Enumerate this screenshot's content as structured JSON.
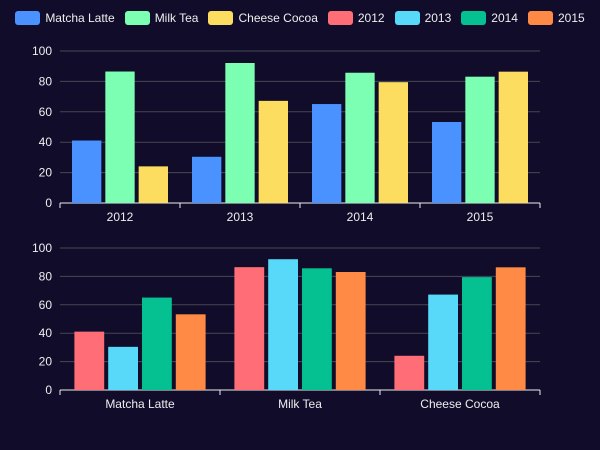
{
  "colors": {
    "background": "#100c2a",
    "text": "#eeeeee",
    "grid": "#484753",
    "axis": "#eeeeee"
  },
  "legend": {
    "items": [
      {
        "label": "Matcha Latte",
        "color": "#4992ff"
      },
      {
        "label": "Milk Tea",
        "color": "#7cffb2"
      },
      {
        "label": "Cheese Cocoa",
        "color": "#fddd60"
      },
      {
        "label": "2012",
        "color": "#ff6e76"
      },
      {
        "label": "2013",
        "color": "#58d9f9"
      },
      {
        "label": "2014",
        "color": "#05c091"
      },
      {
        "label": "2015",
        "color": "#ff8a45"
      }
    ]
  },
  "chart_data": [
    {
      "type": "bar",
      "categories": [
        "2012",
        "2013",
        "2014",
        "2015"
      ],
      "series": [
        {
          "name": "Matcha Latte",
          "color": "#4992ff",
          "values": [
            41.1,
            30.4,
            65.1,
            53.3
          ]
        },
        {
          "name": "Milk Tea",
          "color": "#7cffb2",
          "values": [
            86.5,
            92.1,
            85.7,
            83.1
          ]
        },
        {
          "name": "Cheese Cocoa",
          "color": "#fddd60",
          "values": [
            24.1,
            67.2,
            79.5,
            86.4
          ]
        }
      ],
      "ylim": [
        0,
        100
      ],
      "yticks": [
        0,
        20,
        40,
        60,
        80,
        100
      ],
      "grid": true,
      "legend_position": "top"
    },
    {
      "type": "bar",
      "categories": [
        "Matcha Latte",
        "Milk Tea",
        "Cheese Cocoa"
      ],
      "series": [
        {
          "name": "2012",
          "color": "#ff6e76",
          "values": [
            41.1,
            86.5,
            24.1
          ]
        },
        {
          "name": "2013",
          "color": "#58d9f9",
          "values": [
            30.4,
            92.1,
            67.2
          ]
        },
        {
          "name": "2014",
          "color": "#05c091",
          "values": [
            65.1,
            85.7,
            79.5
          ]
        },
        {
          "name": "2015",
          "color": "#ff8a45",
          "values": [
            53.3,
            83.1,
            86.4
          ]
        }
      ],
      "ylim": [
        0,
        100
      ],
      "yticks": [
        0,
        20,
        40,
        60,
        80,
        100
      ],
      "grid": true,
      "legend_position": "top"
    }
  ]
}
